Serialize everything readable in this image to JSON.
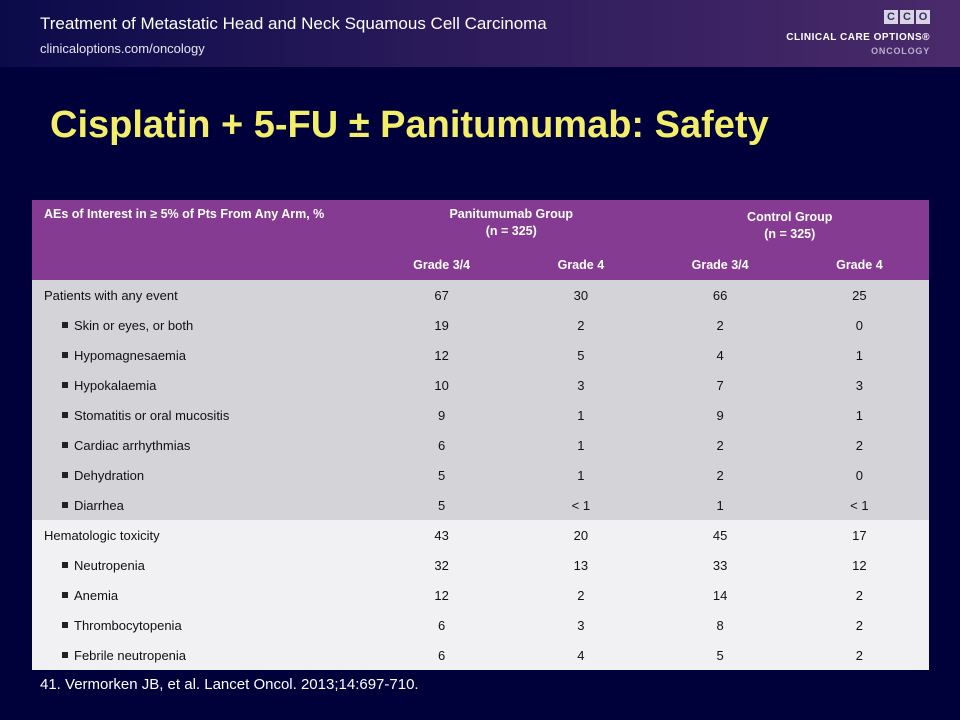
{
  "header": {
    "title": "Treatment of Metastatic Head and Neck Squamous Cell Carcinoma",
    "url": "clinicaloptions.com/oncology"
  },
  "logo": {
    "letters": [
      "C",
      "C",
      "O"
    ],
    "name": "CLINICAL CARE OPTIONS®",
    "sub": "ONCOLOGY"
  },
  "slide_title": "Cisplatin + 5-FU ± Panitumumab: Safety",
  "table": {
    "header_label": "AEs of Interest in ≥ 5% of Pts From Any Arm, %",
    "group1_name": "Panitumumab Group",
    "group1_n": "(n = 325)",
    "group2_name": "Control Group",
    "group2_n": "(n = 325)",
    "columns": [
      "Grade 3/4",
      "Grade 4",
      "Grade 3/4",
      "Grade 4"
    ],
    "rows": [
      {
        "label": "Patients with any event",
        "sub": false,
        "section": "a",
        "values": [
          "67",
          "30",
          "66",
          "25"
        ]
      },
      {
        "label": "Skin or eyes, or both",
        "sub": true,
        "section": "a",
        "values": [
          "19",
          "2",
          "2",
          "0"
        ]
      },
      {
        "label": "Hypomagnesaemia",
        "sub": true,
        "section": "a",
        "values": [
          "12",
          "5",
          "4",
          "1"
        ]
      },
      {
        "label": "Hypokalaemia",
        "sub": true,
        "section": "a",
        "values": [
          "10",
          "3",
          "7",
          "3"
        ]
      },
      {
        "label": "Stomatitis or oral mucositis",
        "sub": true,
        "section": "a",
        "values": [
          "9",
          "1",
          "9",
          "1"
        ]
      },
      {
        "label": "Cardiac arrhythmias",
        "sub": true,
        "section": "a",
        "values": [
          "6",
          "1",
          "2",
          "2"
        ]
      },
      {
        "label": "Dehydration",
        "sub": true,
        "section": "a",
        "values": [
          "5",
          "1",
          "2",
          "0"
        ]
      },
      {
        "label": "Diarrhea",
        "sub": true,
        "section": "a",
        "values": [
          "5",
          "< 1",
          "1",
          "< 1"
        ]
      },
      {
        "label": "Hematologic toxicity",
        "sub": false,
        "section": "b",
        "values": [
          "43",
          "20",
          "45",
          "17"
        ]
      },
      {
        "label": "Neutropenia",
        "sub": true,
        "section": "b",
        "values": [
          "32",
          "13",
          "33",
          "12"
        ]
      },
      {
        "label": "Anemia",
        "sub": true,
        "section": "b",
        "values": [
          "12",
          "2",
          "14",
          "2"
        ]
      },
      {
        "label": "Thrombocytopenia",
        "sub": true,
        "section": "b",
        "values": [
          "6",
          "3",
          "8",
          "2"
        ]
      },
      {
        "label": "Febrile neutropenia",
        "sub": true,
        "section": "b",
        "values": [
          "6",
          "4",
          "5",
          "2"
        ]
      }
    ]
  },
  "reference": "41. Vermorken JB, et al. Lancet Oncol. 2013;14:697-710.",
  "colors": {
    "background": "#00003a",
    "title": "#f2ee6a",
    "table_header": "#843b91",
    "section_a": "#d4d4d8",
    "section_b": "#f1f1f3"
  }
}
